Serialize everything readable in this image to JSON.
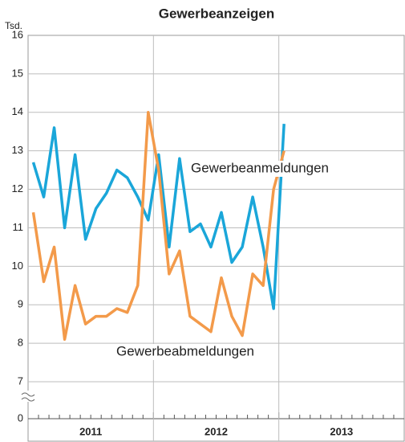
{
  "chart_data": {
    "type": "line",
    "title": "Gewerbeanzeigen",
    "y_unit": "Tsd.",
    "categories": [
      null,
      null,
      null,
      null,
      null,
      null,
      null,
      null,
      null,
      null,
      null,
      null,
      null,
      null,
      null,
      null,
      null,
      null,
      null,
      null,
      null,
      null,
      null,
      null,
      null
    ],
    "year_labels": [
      "2011",
      "2012",
      "2013"
    ],
    "series": [
      {
        "name": "Gewerbeanmeldungen",
        "color": "#1aa6d9",
        "values": [
          12.7,
          11.8,
          13.6,
          11.0,
          12.9,
          10.7,
          11.5,
          11.9,
          12.5,
          12.3,
          11.8,
          11.2,
          12.9,
          10.5,
          12.8,
          10.9,
          11.1,
          10.5,
          11.4,
          10.1,
          10.5,
          11.8,
          10.5,
          8.9,
          13.7
        ]
      },
      {
        "name": "Gewerbeabmeldungen",
        "color": "#f39a4a",
        "values": [
          11.4,
          9.6,
          10.5,
          8.1,
          9.5,
          8.5,
          8.7,
          8.7,
          8.9,
          8.8,
          9.5,
          14.0,
          12.5,
          9.8,
          10.4,
          8.7,
          8.5,
          8.3,
          9.7,
          8.7,
          8.2,
          9.8,
          9.5,
          12.0,
          13.0
        ]
      }
    ],
    "ylim": [
      0,
      16
    ],
    "axis_break": [
      0,
      7
    ],
    "yticks": [
      0,
      7,
      8,
      9,
      10,
      11,
      12,
      13,
      14,
      15,
      16
    ],
    "grid": true
  }
}
